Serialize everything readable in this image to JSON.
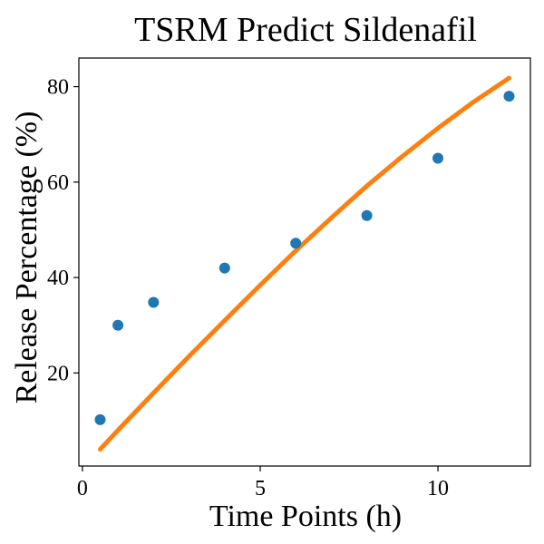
{
  "chart_data": {
    "type": "scatter",
    "title": "TSRM Predict Sildenafil",
    "xlabel": "Time Points (h)",
    "ylabel": "Release Percentage (%)",
    "xlim": [
      -0.1,
      12.6
    ],
    "ylim": [
      0.5,
      86
    ],
    "xticks": [
      0,
      5,
      10
    ],
    "yticks": [
      20,
      40,
      60,
      80
    ],
    "grid": false,
    "series": [
      {
        "kind": "scatter",
        "color": "#1f77b4",
        "x": [
          0.5,
          1,
          2,
          4,
          6,
          8,
          10,
          12
        ],
        "y": [
          10.2,
          30,
          34.8,
          42,
          47.2,
          53,
          65,
          78
        ]
      },
      {
        "kind": "line",
        "color": "#ff7f0e",
        "x": [
          0.5,
          1,
          2,
          3,
          4,
          5,
          6,
          7,
          8,
          9,
          10,
          11,
          12
        ],
        "y": [
          4,
          8,
          15.8,
          23.5,
          31,
          38.4,
          45.6,
          52.5,
          59.2,
          65.4,
          71.3,
          76.8,
          81.8
        ]
      }
    ]
  }
}
